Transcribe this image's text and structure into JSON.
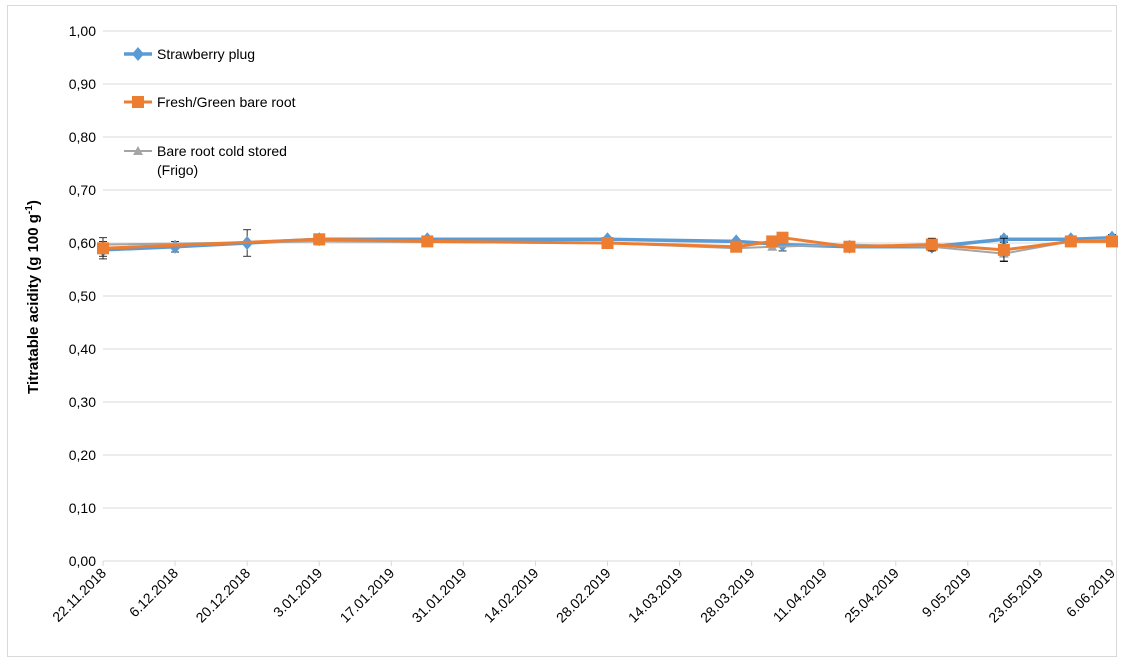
{
  "chart_data": {
    "type": "line",
    "ylabel": "Titratable acidity (g 100 g",
    "ylabel_sup": "-1",
    "ylabel_end": ")",
    "ylim": [
      0,
      1
    ],
    "y_ticks": [
      "0,00",
      "0,10",
      "0,20",
      "0,30",
      "0,40",
      "0,50",
      "0,60",
      "0,70",
      "0,80",
      "0,90",
      "1,00"
    ],
    "x_ticks": [
      "22.11.2018",
      "6.12.2018",
      "20.12.2018",
      "3.01.2019",
      "17.01.2019",
      "31.01.2019",
      "14.02.2019",
      "28.02.2019",
      "14.03.2019",
      "28.03.2019",
      "11.04.2019",
      "25.04.2019",
      "9.05.2019",
      "23.05.2019",
      "6.06.2019"
    ],
    "x_range": [
      "2018-11-22",
      "2019-06-06"
    ],
    "grid": "horizontal",
    "legend_position": "top-left",
    "series": [
      {
        "name": "Strawberry plug",
        "color": "#5b9bd5",
        "marker": "diamond",
        "points": [
          {
            "x": "2018-11-22",
            "y": 0.587,
            "err": 0.012
          },
          {
            "x": "2018-12-06",
            "y": 0.593,
            "err": 0.01
          },
          {
            "x": "2018-12-20",
            "y": 0.6,
            "err": 0.025
          },
          {
            "x": "2019-01-03",
            "y": 0.607,
            "err": 0.004
          },
          {
            "x": "2019-01-24",
            "y": 0.607,
            "err": 0.004
          },
          {
            "x": "2019-02-28",
            "y": 0.607,
            "err": 0.004
          },
          {
            "x": "2019-03-25",
            "y": 0.603,
            "err": 0.004
          },
          {
            "x": "2019-04-03",
            "y": 0.597,
            "err": 0.012
          },
          {
            "x": "2019-04-16",
            "y": 0.593,
            "err": 0.006
          },
          {
            "x": "2019-05-02",
            "y": 0.593,
            "err": 0.006
          },
          {
            "x": "2019-05-16",
            "y": 0.607,
            "err": 0.006
          },
          {
            "x": "2019-05-29",
            "y": 0.607,
            "err": 0.004
          },
          {
            "x": "2019-06-06",
            "y": 0.61,
            "err": 0.006
          }
        ]
      },
      {
        "name": "Fresh/Green bare root",
        "color": "#ed7d31",
        "marker": "square",
        "points": [
          {
            "x": "2018-11-22",
            "y": 0.59,
            "err": 0.02
          },
          {
            "x": "2019-01-03",
            "y": 0.607,
            "err": 0.004
          },
          {
            "x": "2019-01-24",
            "y": 0.603,
            "err": 0.004
          },
          {
            "x": "2019-02-28",
            "y": 0.6,
            "err": 0.004
          },
          {
            "x": "2019-03-25",
            "y": 0.593,
            "err": 0.004
          },
          {
            "x": "2019-04-01",
            "y": 0.603,
            "err": 0.006
          },
          {
            "x": "2019-04-03",
            "y": 0.61,
            "err": 0.004
          },
          {
            "x": "2019-04-16",
            "y": 0.593,
            "err": 0.006
          },
          {
            "x": "2019-05-02",
            "y": 0.597,
            "err": 0.012
          },
          {
            "x": "2019-05-16",
            "y": 0.587,
            "err": 0.022
          },
          {
            "x": "2019-05-29",
            "y": 0.603,
            "err": 0.004
          },
          {
            "x": "2019-06-06",
            "y": 0.603,
            "err": 0.004
          }
        ]
      },
      {
        "name": "Bare root cold stored (Frigo)",
        "legend_lines": [
          "Bare root cold stored",
          "(Frigo)"
        ],
        "color": "#a5a5a5",
        "marker": "triangle",
        "points": [
          {
            "x": "2018-11-22",
            "y": 0.597,
            "err": 0.006
          },
          {
            "x": "2019-01-03",
            "y": 0.603,
            "err": 0.004
          },
          {
            "x": "2019-02-28",
            "y": 0.6,
            "err": 0.004
          },
          {
            "x": "2019-03-25",
            "y": 0.59,
            "err": 0.004
          },
          {
            "x": "2019-04-01",
            "y": 0.593,
            "err": 0.006
          },
          {
            "x": "2019-04-16",
            "y": 0.597,
            "err": 0.006
          },
          {
            "x": "2019-05-02",
            "y": 0.593,
            "err": 0.006
          },
          {
            "x": "2019-05-16",
            "y": 0.58,
            "err": 0.014
          },
          {
            "x": "2019-05-29",
            "y": 0.603,
            "err": 0.004
          },
          {
            "x": "2019-06-06",
            "y": 0.607,
            "err": 0.004
          }
        ]
      }
    ]
  }
}
